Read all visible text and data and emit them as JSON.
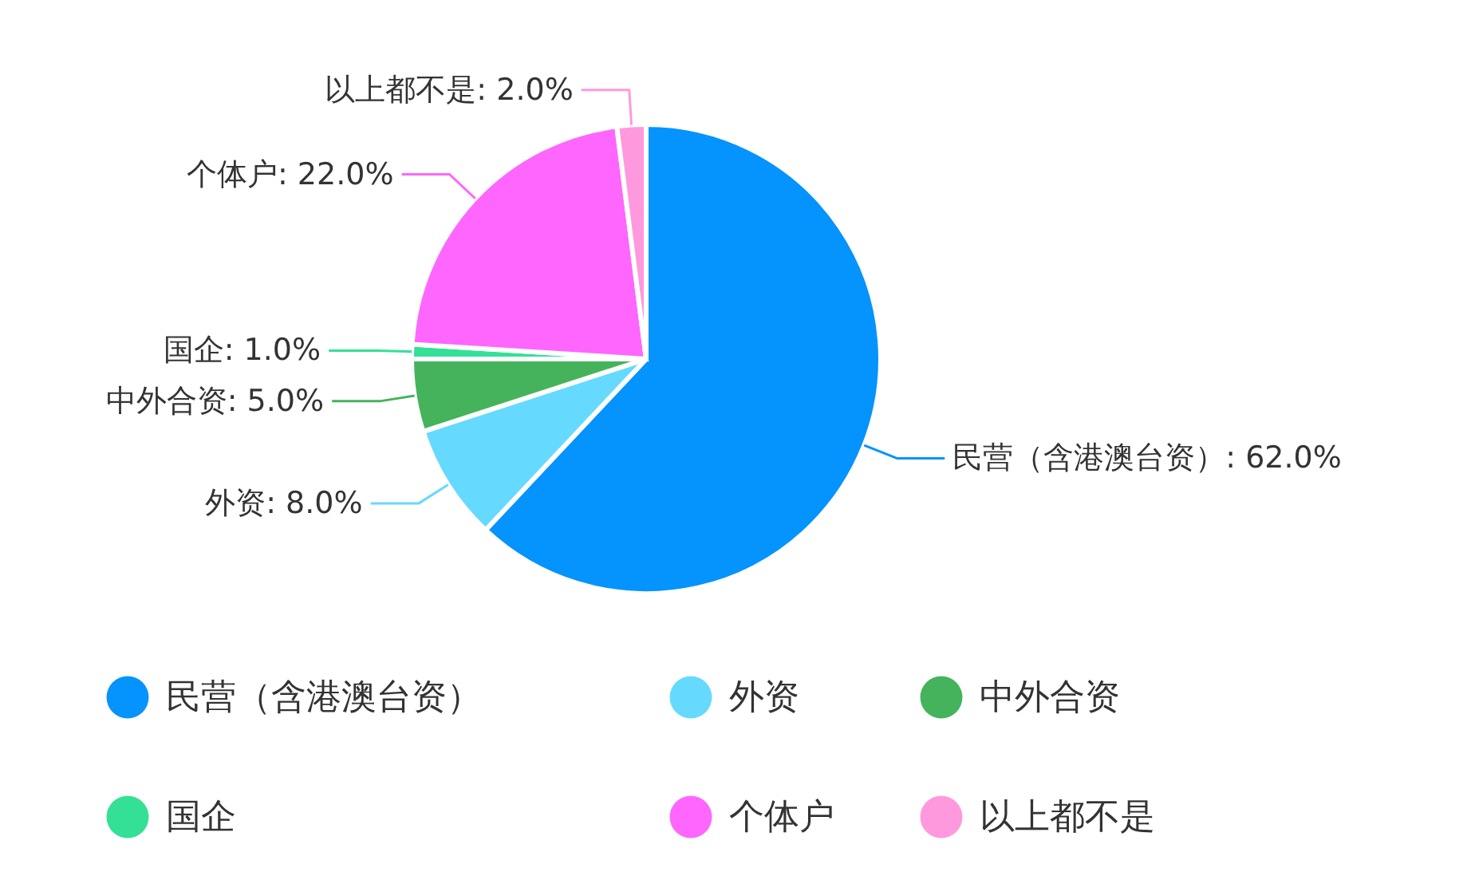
{
  "chart_data": {
    "type": "pie",
    "categories": [
      "民营（含港澳台资）",
      "外资",
      "中外合资",
      "国企",
      "个体户",
      "以上都不是"
    ],
    "values": [
      62.0,
      8.0,
      5.0,
      1.0,
      22.0,
      2.0
    ],
    "value_labels": [
      "民营（含港澳台资）: 62.0%",
      "外资: 8.0%",
      "中外合资: 5.0%",
      "国企: 1.0%",
      "个体户: 22.0%",
      "以上都不是: 2.0%"
    ],
    "colors": [
      "#0593fd",
      "#66d9fe",
      "#45b35b",
      "#33e096",
      "#fe66fe",
      "#fe99dd"
    ],
    "legend": "bottom"
  }
}
